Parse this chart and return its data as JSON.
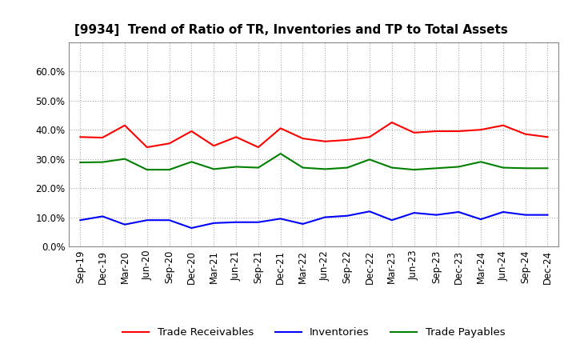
{
  "title": "[9934]  Trend of Ratio of TR, Inventories and TP to Total Assets",
  "labels": [
    "Sep-19",
    "Dec-19",
    "Mar-20",
    "Jun-20",
    "Sep-20",
    "Dec-20",
    "Mar-21",
    "Jun-21",
    "Sep-21",
    "Dec-21",
    "Mar-22",
    "Jun-22",
    "Sep-22",
    "Dec-22",
    "Mar-23",
    "Jun-23",
    "Sep-23",
    "Dec-23",
    "Mar-24",
    "Jun-24",
    "Sep-24",
    "Dec-24"
  ],
  "trade_receivables": [
    0.375,
    0.373,
    0.415,
    0.34,
    0.353,
    0.395,
    0.345,
    0.375,
    0.34,
    0.405,
    0.37,
    0.36,
    0.365,
    0.375,
    0.425,
    0.39,
    0.395,
    0.395,
    0.4,
    0.415,
    0.385,
    0.375
  ],
  "inventories": [
    0.09,
    0.103,
    0.075,
    0.09,
    0.09,
    0.063,
    0.08,
    0.083,
    0.083,
    0.095,
    0.077,
    0.1,
    0.105,
    0.12,
    0.09,
    0.115,
    0.108,
    0.118,
    0.093,
    0.118,
    0.108,
    0.108
  ],
  "trade_payables": [
    0.288,
    0.289,
    0.3,
    0.263,
    0.263,
    0.29,
    0.265,
    0.273,
    0.27,
    0.318,
    0.27,
    0.265,
    0.27,
    0.298,
    0.27,
    0.263,
    0.268,
    0.273,
    0.29,
    0.27,
    0.268,
    0.268
  ],
  "tr_color": "#ff0000",
  "inv_color": "#0000ff",
  "tp_color": "#008000",
  "background_color": "#ffffff",
  "grid_color": "#aaaaaa",
  "ylim": [
    0.0,
    0.7
  ],
  "yticks": [
    0.0,
    0.1,
    0.2,
    0.3,
    0.4,
    0.5,
    0.6
  ],
  "legend_labels": [
    "Trade Receivables",
    "Inventories",
    "Trade Payables"
  ],
  "title_fontsize": 11,
  "tick_fontsize": 8.5,
  "legend_fontsize": 9.5
}
